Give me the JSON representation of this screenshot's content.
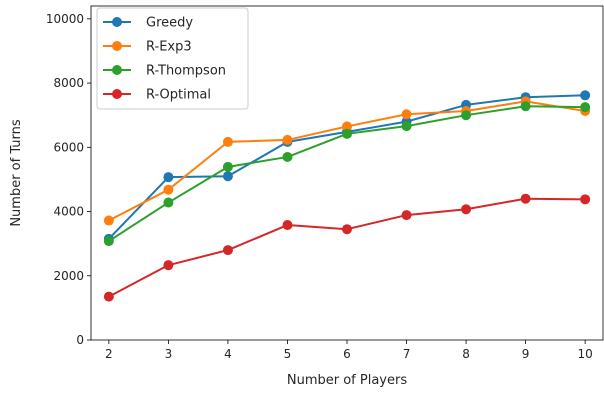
{
  "chart_data": {
    "type": "line",
    "x": [
      2,
      3,
      4,
      5,
      6,
      7,
      8,
      9,
      10
    ],
    "xlabel": "Number of Players",
    "ylabel": "Number of Turns",
    "xlim": [
      1.7,
      10.3
    ],
    "ylim": [
      0,
      10400
    ],
    "xticks": [
      2,
      3,
      4,
      5,
      6,
      7,
      8,
      9,
      10
    ],
    "yticks": [
      0,
      2000,
      4000,
      6000,
      8000,
      10000
    ],
    "grid": false,
    "legend_position": "top-left",
    "series": [
      {
        "name": "Greedy",
        "color": "#1f77b4",
        "values": [
          3150,
          5070,
          5100,
          6170,
          6480,
          6800,
          7320,
          7560,
          7620
        ]
      },
      {
        "name": "R-Exp3",
        "color": "#ff7f0e",
        "values": [
          3720,
          4680,
          6170,
          6230,
          6650,
          7030,
          7130,
          7430,
          7130
        ]
      },
      {
        "name": "R-Thompson",
        "color": "#2ca02c",
        "values": [
          3080,
          4280,
          5390,
          5700,
          6420,
          6660,
          7000,
          7280,
          7250
        ]
      },
      {
        "name": "R-Optimal",
        "color": "#d62728",
        "values": [
          1350,
          2330,
          2800,
          3580,
          3450,
          3890,
          4070,
          4400,
          4380
        ]
      }
    ]
  }
}
